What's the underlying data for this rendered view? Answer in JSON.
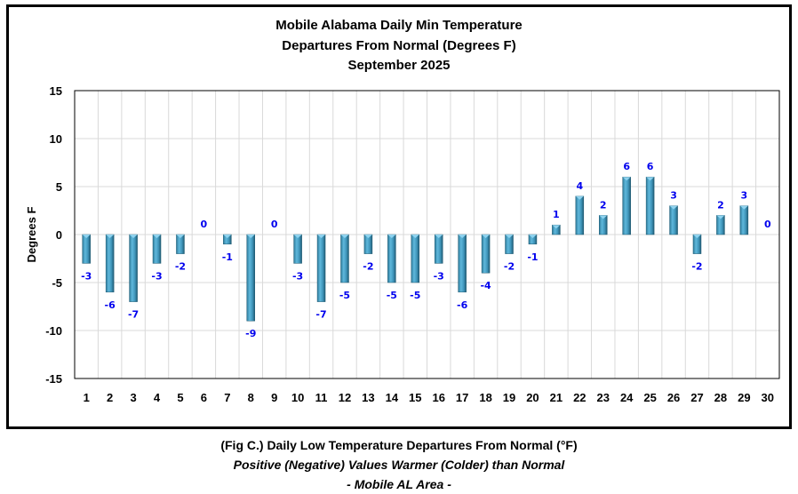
{
  "chart_data": {
    "type": "bar",
    "title": [
      "Mobile Alabama Daily Min Temperature",
      "Departures From Normal (Degrees F)",
      "September 2025"
    ],
    "xlabel": "",
    "ylabel": "Degrees F",
    "ylim": [
      -15,
      15
    ],
    "yticks": [
      15,
      10,
      5,
      0,
      -5,
      -10,
      -15
    ],
    "grid": true,
    "categories": [
      "1",
      "2",
      "3",
      "4",
      "5",
      "6",
      "7",
      "8",
      "9",
      "10",
      "11",
      "12",
      "13",
      "14",
      "15",
      "16",
      "17",
      "18",
      "19",
      "20",
      "21",
      "22",
      "23",
      "24",
      "25",
      "26",
      "27",
      "28",
      "29",
      "30"
    ],
    "values": [
      -3,
      -6,
      -7,
      -3,
      -2,
      0,
      -1,
      -9,
      0,
      -3,
      -7,
      -5,
      -2,
      -5,
      -5,
      -3,
      -6,
      -4,
      -2,
      -1,
      1,
      4,
      2,
      6,
      6,
      3,
      -2,
      2,
      3,
      0
    ],
    "bar_color": "#4aa3c8",
    "label_color": "#0000ee"
  },
  "captions": {
    "line1": "(Fig C.) Daily Low Temperature Departures From Normal (°F)",
    "line2": "Positive (Negative) Values Warmer (Colder) than Normal",
    "line3": "- Mobile AL Area -"
  }
}
